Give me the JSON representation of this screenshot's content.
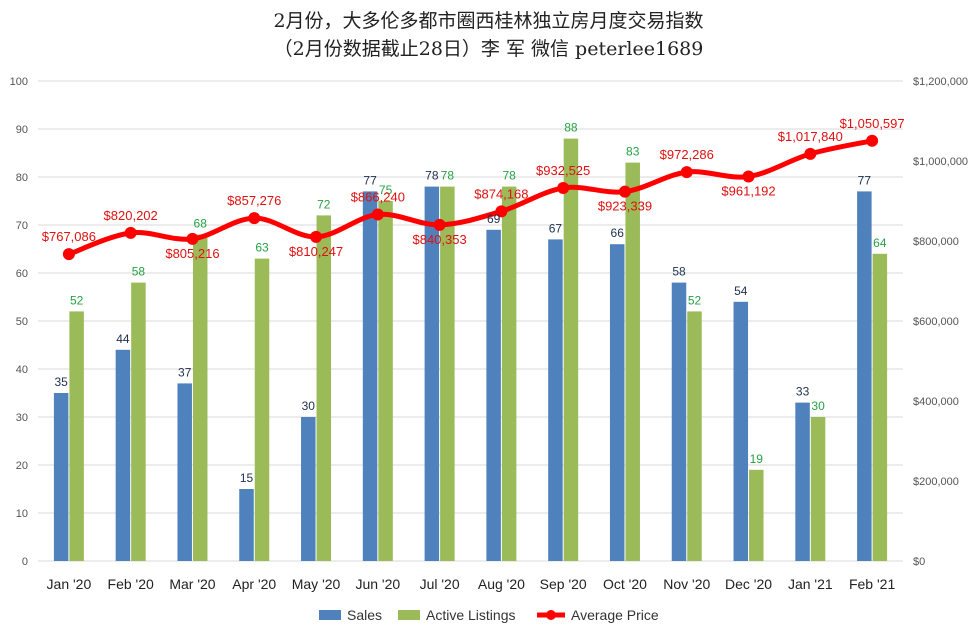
{
  "title_line1": "2月份，大多伦多都市圈西桂林独立房月度交易指数",
  "title_line2": "（2月份数据截止28日）李 军  微信  peterlee1689",
  "colors": {
    "sales": "#4f81bd",
    "active_listings": "#9bbb59",
    "average_price": "#ff0000",
    "sales_label": "#1f2f4f",
    "active_label": "#27a045",
    "price_label": "#e01010"
  },
  "chart_data": {
    "type": "bar",
    "categories": [
      "Jan '20",
      "Feb '20",
      "Mar '20",
      "Apr '20",
      "May '20",
      "Jun '20",
      "Jul '20",
      "Aug '20",
      "Sep '20",
      "Oct '20",
      "Nov '20",
      "Dec '20",
      "Jan '21",
      "Feb '21"
    ],
    "series": [
      {
        "name": "Sales",
        "type": "bar",
        "axis": "left",
        "values": [
          35,
          44,
          37,
          15,
          30,
          77,
          78,
          69,
          67,
          66,
          58,
          54,
          33,
          77
        ]
      },
      {
        "name": "Active Listings",
        "type": "bar",
        "axis": "left",
        "values": [
          52,
          58,
          68,
          63,
          72,
          75,
          78,
          78,
          88,
          83,
          52,
          19,
          30,
          64
        ]
      },
      {
        "name": "Average Price",
        "type": "line",
        "axis": "right",
        "values": [
          767086,
          820202,
          805216,
          857276,
          810247,
          866240,
          840353,
          874168,
          932525,
          923339,
          972286,
          961192,
          1017840,
          1050597
        ],
        "labels": [
          "$767,086",
          "$820,202",
          "$805,216",
          "$857,276",
          "$810,247",
          "$866,240",
          "$840,353",
          "$874,168",
          "$932,525",
          "$923,339",
          "$972,286",
          "$961,192",
          "$1,017,840",
          "$1,050,597"
        ]
      }
    ],
    "y_left": {
      "min": 0,
      "max": 100,
      "ticks": [
        "0",
        "10",
        "20",
        "30",
        "40",
        "50",
        "60",
        "70",
        "80",
        "90",
        "100"
      ]
    },
    "y_right": {
      "min": 0,
      "max": 1200000,
      "ticks": [
        "$0",
        "$200,000",
        "$400,000",
        "$600,000",
        "$800,000",
        "$1,000,000",
        "$1,200,000"
      ]
    },
    "grid": true,
    "legend_position": "bottom"
  }
}
